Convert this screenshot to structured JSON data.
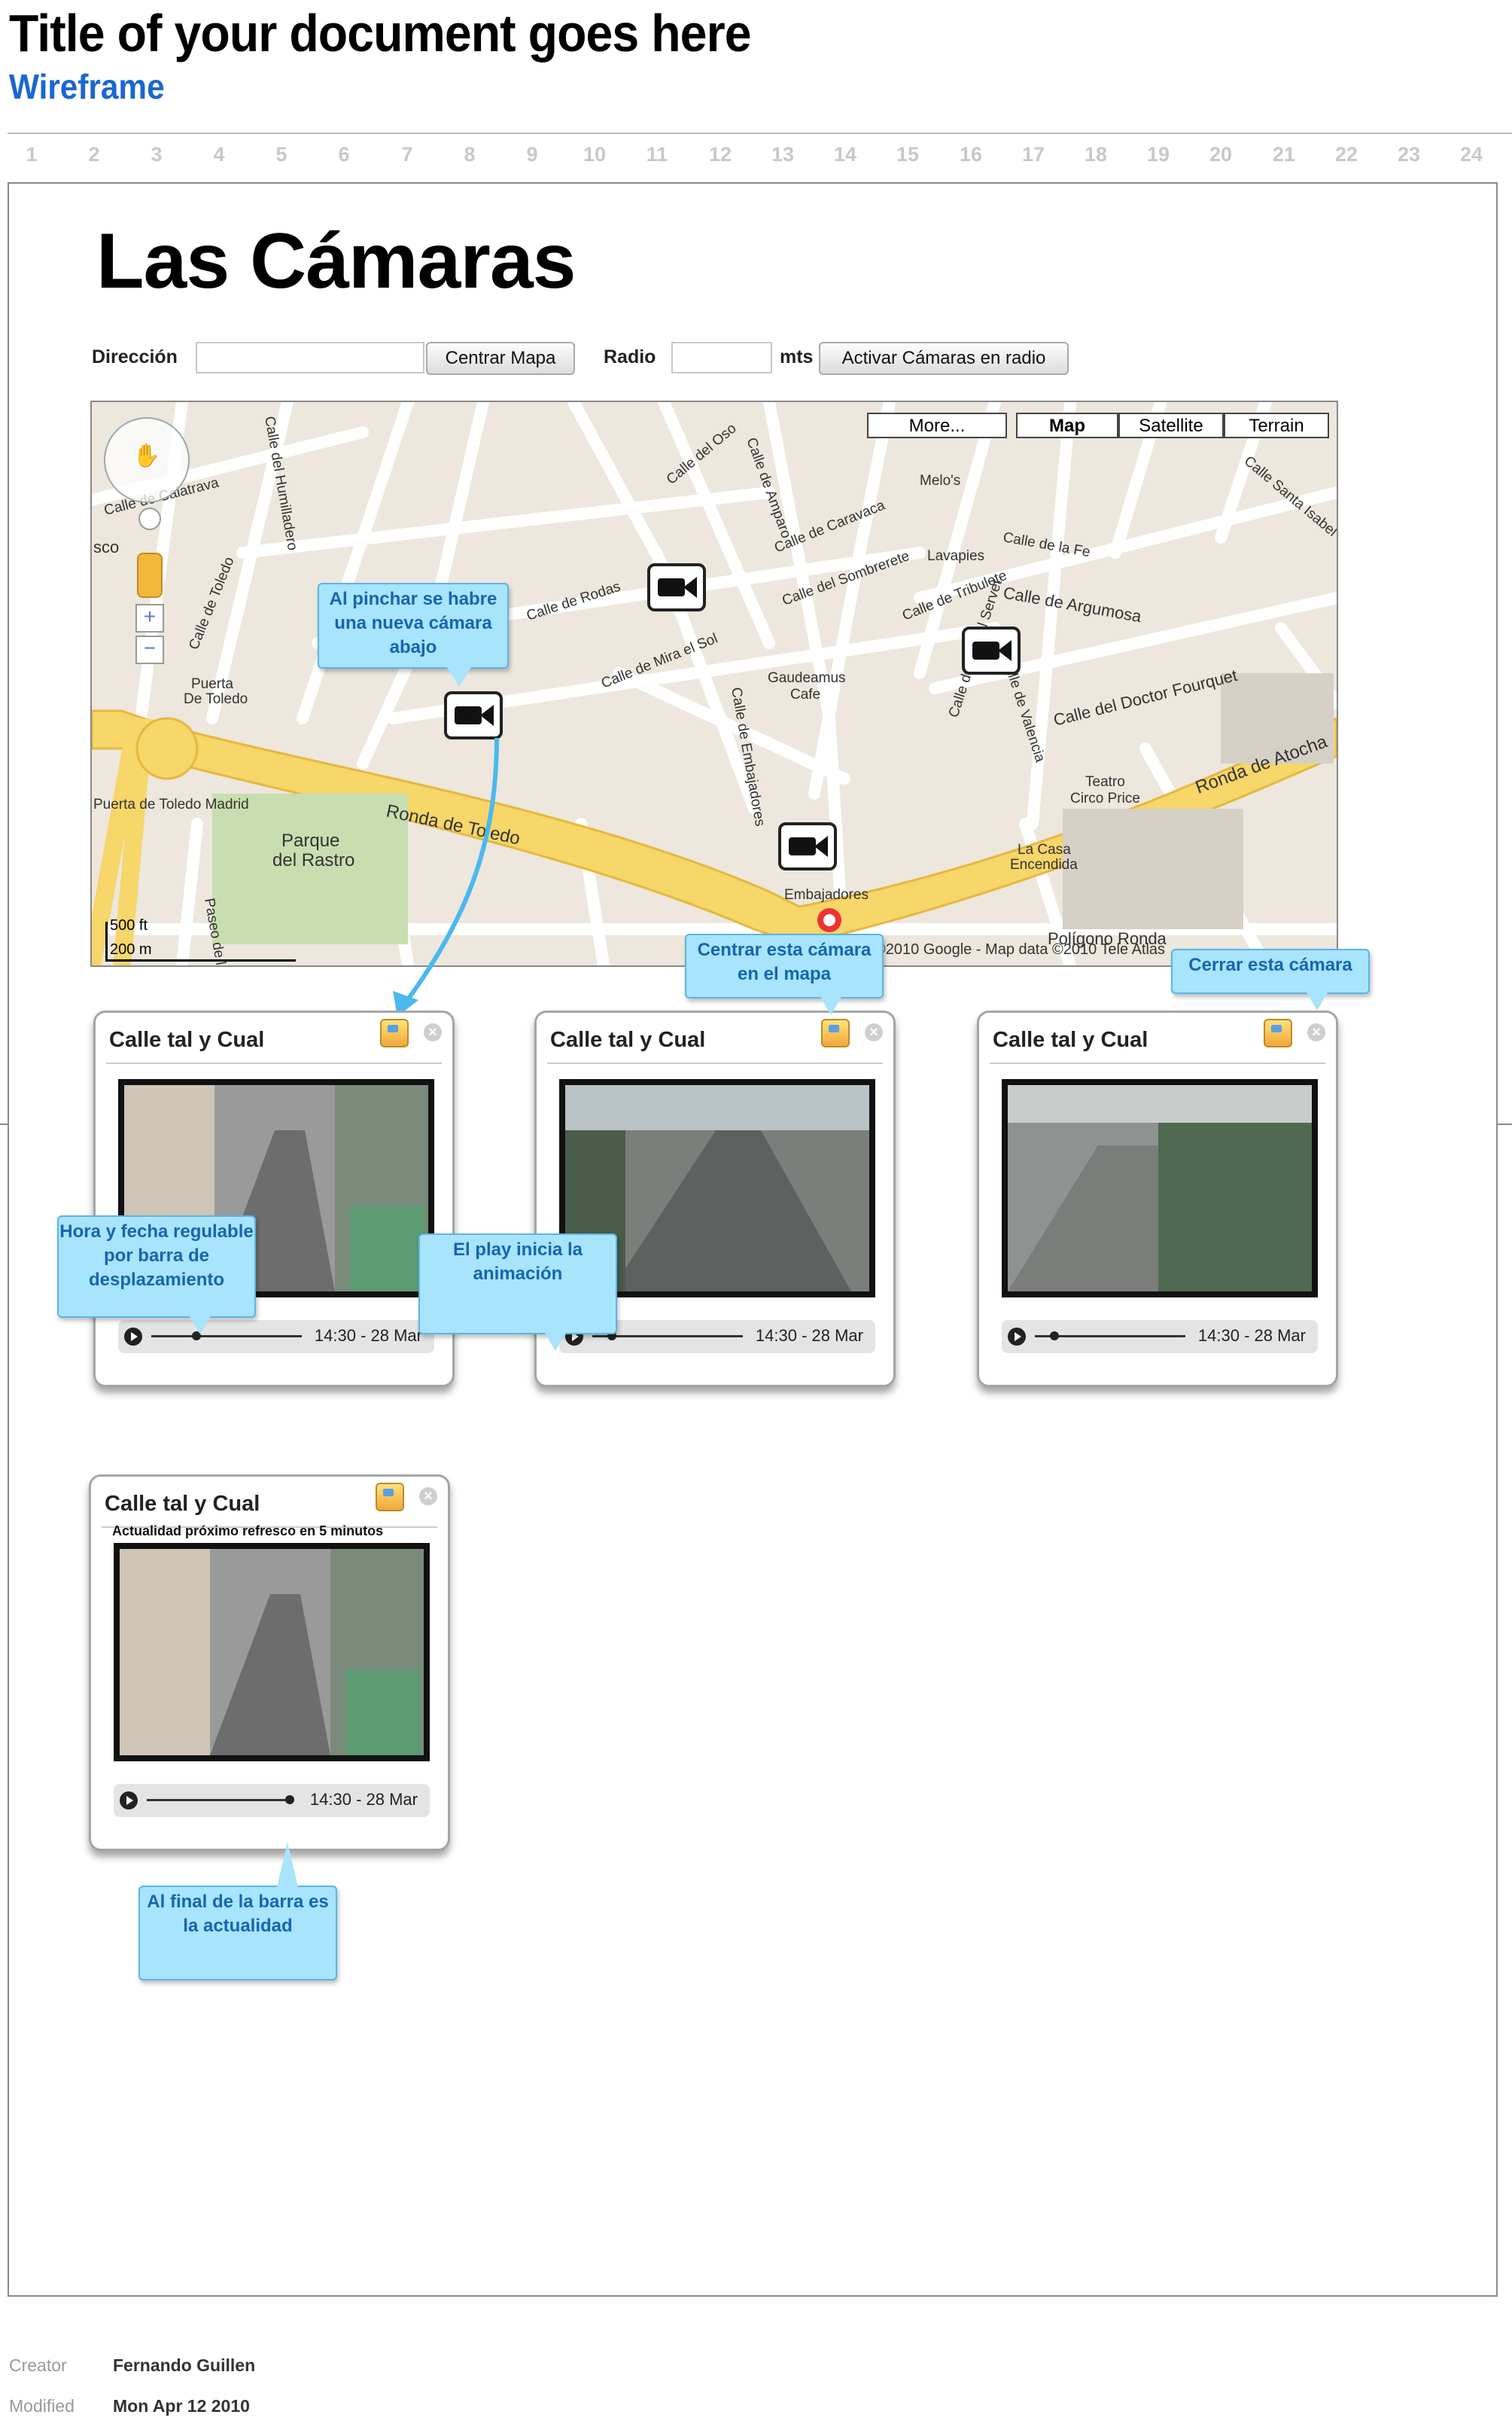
{
  "document": {
    "title": "Title of your document goes here",
    "subtitle": "Wireframe"
  },
  "ruler": [
    "1",
    "2",
    "3",
    "4",
    "5",
    "6",
    "7",
    "8",
    "9",
    "10",
    "11",
    "12",
    "13",
    "14",
    "15",
    "16",
    "17",
    "18",
    "19",
    "20",
    "21",
    "22",
    "23",
    "24"
  ],
  "page": {
    "heading": "Las Cámaras",
    "direccion_label": "Dirección",
    "direccion_value": "",
    "centrar_button": "Centrar Mapa",
    "radio_label": "Radio",
    "radio_value": "",
    "radio_unit": "mts",
    "activar_button": "Activar Cámaras en radio"
  },
  "map": {
    "type_buttons": [
      "More...",
      "Map",
      "Satellite",
      "Terrain"
    ],
    "selected_type": "Map",
    "scale_ft": "500 ft",
    "scale_m": "200 m",
    "attribution": "©2010 Google - Map data ©2010 Tele Atlas",
    "streets": [
      "Calle de Calatrava",
      "Calle de Toledo",
      "Ronda de Toledo",
      "Puerta De Toledo",
      "Parque del Rastro",
      "Calle de Embajadores",
      "Calle de Rodas",
      "Calle de Mira el Sol",
      "Gaudeamus Cafe",
      "Calle del Sombrerete",
      "Calle de Tribulete",
      "Calle de Argumosa",
      "Calle del Doctor Fourquet",
      "Ronda de Atocha",
      "Teatro Circo Price",
      "La Casa Encendida",
      "Embajadores",
      "Lavapies",
      "Melo's",
      "Calle de Valencia",
      "Calle de Miguel Servet",
      "Paseo de los Olmos",
      "Calle de Caravaca",
      "Calle de la Fe",
      "Calle Santa Isabel",
      "Polígono Ronda",
      "Calle del Oso",
      "Calle de Amparo",
      "Calle del Humilladero",
      "Puerta de Toledo Madrid",
      "sco"
    ]
  },
  "cameras": [
    {
      "title": "Calle tal y Cual",
      "time": "14:30 - 28 Mar",
      "notice": ""
    },
    {
      "title": "Calle tal y Cual",
      "time": "14:30 - 28 Mar",
      "notice": ""
    },
    {
      "title": "Calle tal y Cual",
      "time": "14:30 - 28 Mar",
      "notice": ""
    },
    {
      "title": "Calle tal y Cual",
      "time": "14:30 - 28 Mar",
      "notice": "Actualidad próximo refresco en 5 minutos"
    }
  ],
  "callouts": {
    "map_click": "Al pinchar se habre una nueva cámara abajo",
    "center_camera": "Centrar esta cámara en el mapa",
    "close_camera": "Cerrar esta cámara",
    "time_scroll": "Hora y fecha regulable por barra de desplazamiento",
    "play": "El play inicia la animación",
    "bar_end": "Al final de la barra es la actualidad"
  },
  "colors": {
    "accent": "#1a66d1",
    "callout_fill": "#a8e4fb",
    "callout_text": "#1565b0",
    "arrow": "#4bb8f0"
  },
  "footer": {
    "creator_label": "Creator",
    "creator_value": "Fernando Guillen",
    "modified_label": "Modified",
    "modified_value": "Mon Apr 12 2010"
  }
}
